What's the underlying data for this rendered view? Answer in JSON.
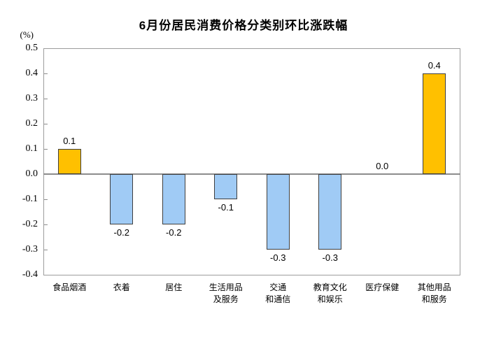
{
  "chart_data": {
    "type": "bar",
    "title": "6月份居民消费价格分类别环比涨跌幅",
    "unit_label": "(%)",
    "categories": [
      "食品烟酒",
      "衣着",
      "居住",
      "生活用品\n及服务",
      "交通\n和通信",
      "教育文化\n和娱乐",
      "医疗保健",
      "其他用品\n和服务"
    ],
    "values": [
      0.1,
      -0.2,
      -0.2,
      -0.1,
      -0.3,
      -0.3,
      0.0,
      0.4
    ],
    "value_labels": [
      "0.1",
      "-0.2",
      "-0.2",
      "-0.1",
      "-0.3",
      "-0.3",
      "0.0",
      "0.4"
    ],
    "ylim": [
      -0.4,
      0.5
    ],
    "y_ticks": [
      "0.5",
      "0.4",
      "0.3",
      "0.2",
      "0.1",
      "0.0",
      "-0.1",
      "-0.2",
      "-0.3",
      "-0.4"
    ],
    "grid": "off",
    "legend": "none",
    "colors": {
      "positive_bar": "#FFC000",
      "negative_bar": "#A0CBF5",
      "bar_border": "#3F3F3F",
      "axis_line": "#8C8C8C",
      "plot_border": "#9C9C9C",
      "text": "#000000"
    }
  }
}
